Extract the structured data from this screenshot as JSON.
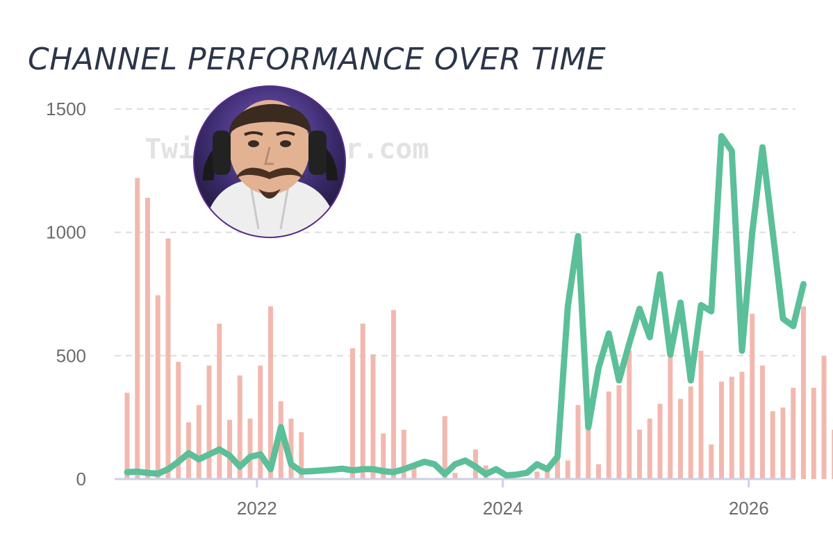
{
  "chart_data": {
    "type": "bar+line",
    "title": "CHANNEL PERFORMANCE OVER TIME",
    "watermark": "TwitchTracker.com",
    "xlabel": "",
    "ylabel": "",
    "x_ticks": [
      "2022",
      "2024",
      "2026"
    ],
    "y_ticks": [
      0,
      500,
      1000,
      1500
    ],
    "ylim": [
      0,
      1500
    ],
    "grid": true,
    "grid_style": "dashed",
    "start_month": "2020-12",
    "series": [
      {
        "name": "monthly bars",
        "kind": "bar",
        "color": "#f2b8ae",
        "values": [
          350,
          1220,
          1140,
          745,
          975,
          475,
          230,
          300,
          460,
          630,
          240,
          420,
          245,
          460,
          700,
          315,
          245,
          190,
          0,
          0,
          0,
          0,
          530,
          630,
          505,
          185,
          685,
          200,
          50,
          0,
          0,
          255,
          25,
          0,
          120,
          55,
          0,
          0,
          0,
          0,
          30,
          30,
          95,
          75,
          300,
          200,
          60,
          355,
          380,
          520,
          200,
          245,
          305,
          510,
          325,
          375,
          520,
          140,
          395,
          415,
          435,
          670,
          460,
          275,
          290,
          370,
          700,
          370,
          500,
          200
        ]
      },
      {
        "name": "monthly line",
        "kind": "line",
        "color": "#5bbf99",
        "values": [
          28,
          30,
          25,
          22,
          40,
          70,
          105,
          80,
          100,
          120,
          95,
          50,
          90,
          100,
          40,
          210,
          60,
          30,
          32,
          35,
          38,
          42,
          35,
          40,
          40,
          32,
          28,
          40,
          55,
          70,
          60,
          20,
          60,
          75,
          50,
          20,
          40,
          15,
          18,
          25,
          60,
          40,
          90,
          700,
          985,
          210,
          450,
          590,
          400,
          550,
          690,
          575,
          830,
          505,
          715,
          400,
          705,
          680,
          1390,
          1330,
          520,
          1000,
          1345,
          1000,
          650,
          620,
          790
        ]
      }
    ]
  },
  "colors": {
    "bar": "#f2b8ae",
    "line": "#5bbf99",
    "grid": "#dcdcdc",
    "axis": "#cfcfe6",
    "title": "#2c3548",
    "avatar_border": "#5b2a8a"
  },
  "avatar": {
    "icon": "streamer-avatar-icon"
  }
}
